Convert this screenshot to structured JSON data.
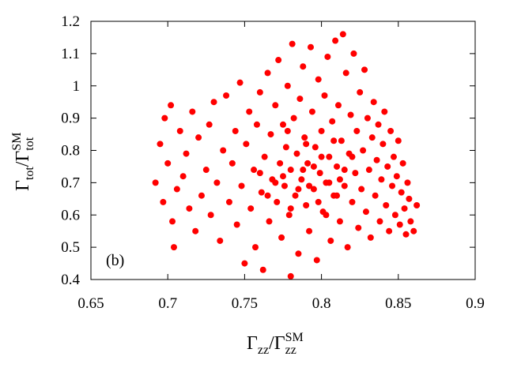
{
  "chart_data": {
    "type": "scatter",
    "xlabel": [
      "Γ",
      "zz",
      "/Γ",
      "zz",
      "SM"
    ],
    "ylabel": [
      "Γ",
      "tot",
      "/Γ",
      "tot",
      "SM"
    ],
    "annotation": "(b)",
    "color": "#ff0000",
    "xlim": [
      0.65,
      0.9
    ],
    "ylim": [
      0.4,
      1.2
    ],
    "xticks": [
      0.65,
      0.7,
      0.75,
      0.8,
      0.85,
      0.9
    ],
    "yticks": [
      0.4,
      0.5,
      0.6,
      0.7,
      0.8,
      0.9,
      1,
      1.1,
      1.2
    ],
    "x": [
      0.692,
      0.695,
      0.697,
      0.698,
      0.7,
      0.702,
      0.703,
      0.704,
      0.706,
      0.708,
      0.71,
      0.712,
      0.714,
      0.716,
      0.718,
      0.72,
      0.722,
      0.725,
      0.727,
      0.728,
      0.73,
      0.732,
      0.734,
      0.736,
      0.738,
      0.74,
      0.742,
      0.744,
      0.745,
      0.747,
      0.748,
      0.75,
      0.751,
      0.753,
      0.754,
      0.756,
      0.757,
      0.758,
      0.76,
      0.761,
      0.762,
      0.763,
      0.765,
      0.766,
      0.767,
      0.768,
      0.77,
      0.771,
      0.772,
      0.773,
      0.774,
      0.775,
      0.776,
      0.777,
      0.778,
      0.779,
      0.78,
      0.78,
      0.781,
      0.782,
      0.783,
      0.784,
      0.785,
      0.786,
      0.787,
      0.788,
      0.789,
      0.79,
      0.791,
      0.792,
      0.793,
      0.794,
      0.795,
      0.796,
      0.797,
      0.798,
      0.799,
      0.8,
      0.801,
      0.802,
      0.803,
      0.804,
      0.805,
      0.806,
      0.807,
      0.808,
      0.809,
      0.81,
      0.811,
      0.812,
      0.813,
      0.814,
      0.815,
      0.816,
      0.817,
      0.818,
      0.819,
      0.82,
      0.821,
      0.822,
      0.823,
      0.824,
      0.825,
      0.826,
      0.827,
      0.828,
      0.829,
      0.83,
      0.831,
      0.832,
      0.833,
      0.834,
      0.835,
      0.836,
      0.837,
      0.838,
      0.839,
      0.84,
      0.841,
      0.842,
      0.843,
      0.844,
      0.845,
      0.846,
      0.847,
      0.848,
      0.849,
      0.85,
      0.851,
      0.852,
      0.853,
      0.854,
      0.855,
      0.856,
      0.857,
      0.858,
      0.86,
      0.862,
      0.775,
      0.785,
      0.795,
      0.805,
      0.79,
      0.8,
      0.81,
      0.78,
      0.77,
      0.815,
      0.798,
      0.788,
      0.765,
      0.76,
      0.82,
      0.808,
      0.792,
      0.803,
      0.778,
      0.812
    ],
    "y": [
      0.7,
      0.82,
      0.64,
      0.9,
      0.76,
      0.94,
      0.58,
      0.5,
      0.68,
      0.86,
      0.72,
      0.79,
      0.62,
      0.92,
      0.55,
      0.84,
      0.66,
      0.74,
      0.88,
      0.6,
      0.95,
      0.7,
      0.52,
      0.8,
      0.97,
      0.64,
      0.76,
      0.86,
      0.57,
      1.01,
      0.69,
      0.45,
      0.82,
      0.92,
      0.62,
      0.74,
      0.5,
      0.88,
      0.98,
      0.67,
      0.43,
      0.78,
      1.04,
      0.58,
      0.85,
      0.71,
      0.94,
      0.64,
      1.08,
      0.76,
      0.53,
      0.88,
      0.69,
      0.81,
      1.0,
      0.6,
      0.74,
      0.41,
      1.13,
      0.9,
      0.66,
      0.79,
      0.48,
      0.96,
      0.71,
      1.06,
      0.84,
      0.63,
      0.76,
      0.55,
      1.12,
      0.92,
      0.68,
      0.81,
      0.46,
      1.02,
      0.73,
      0.86,
      0.61,
      0.97,
      0.7,
      1.09,
      0.78,
      0.52,
      0.89,
      0.66,
      1.14,
      0.75,
      0.94,
      0.58,
      0.83,
      1.16,
      0.69,
      1.04,
      0.5,
      0.79,
      0.91,
      0.64,
      1.1,
      0.73,
      0.86,
      0.56,
      0.98,
      0.68,
      0.8,
      1.05,
      0.61,
      0.9,
      0.74,
      0.53,
      0.84,
      0.95,
      0.66,
      0.77,
      0.88,
      0.58,
      0.71,
      0.82,
      0.92,
      0.63,
      0.75,
      0.55,
      0.86,
      0.69,
      0.78,
      0.6,
      0.72,
      0.83,
      0.57,
      0.67,
      0.76,
      0.62,
      0.54,
      0.7,
      0.65,
      0.58,
      0.55,
      0.63,
      0.72,
      0.68,
      0.75,
      0.7,
      0.82,
      0.78,
      0.66,
      0.62,
      0.7,
      0.74,
      0.64,
      0.74,
      0.66,
      0.73,
      0.78,
      0.83,
      0.69,
      0.6,
      0.86,
      0.71
    ]
  }
}
